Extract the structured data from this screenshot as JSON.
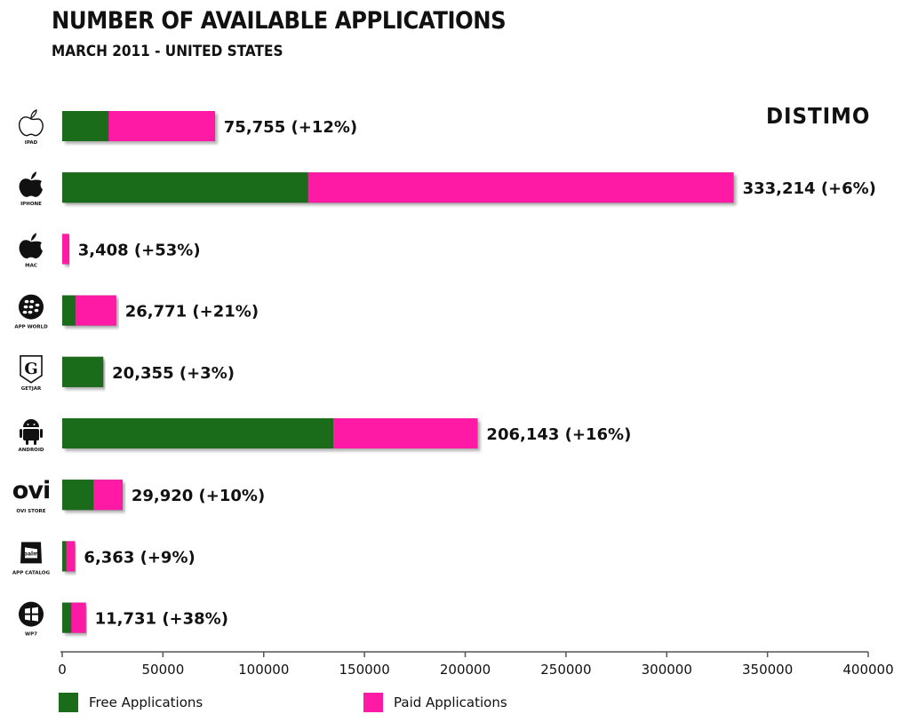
{
  "header": {
    "title": "NUMBER OF AVAILABLE APPLICATIONS",
    "subtitle": "MARCH 2011  - UNITED STATES",
    "brand": "DISTIMO"
  },
  "colors": {
    "free": "#1a6b1a",
    "paid": "#ff1aa6",
    "axis": "#555555"
  },
  "chart_data": {
    "type": "bar",
    "orientation": "horizontal",
    "stacked": true,
    "title": "NUMBER OF AVAILABLE APPLICATIONS",
    "subtitle": "MARCH 2011  - UNITED STATES",
    "xlim": [
      0,
      400000
    ],
    "x_ticks": [
      "0",
      "50000",
      "100000",
      "150000",
      "200000",
      "250000",
      "300000",
      "350000",
      "400000"
    ],
    "legend_position": "bottom-left",
    "grid": false,
    "categories": [
      "IPAD",
      "IPHONE",
      "MAC",
      "APP WORLD",
      "GETJAR",
      "ANDROID",
      "OVI STORE",
      "APP CATALOG",
      "WP7"
    ],
    "icons": [
      "apple-outline-icon",
      "apple-icon",
      "apple-icon",
      "blackberry-icon",
      "getjar-icon",
      "android-icon",
      "ovi-icon",
      "palm-icon",
      "windows-icon"
    ],
    "series": [
      {
        "name": "Free Applications",
        "values": [
          23000,
          122000,
          0,
          6500,
          20355,
          134500,
          15500,
          2000,
          4500
        ]
      },
      {
        "name": "Paid Applications",
        "values": [
          52755,
          211214,
          3408,
          20271,
          0,
          71643,
          14420,
          4363,
          7231
        ]
      }
    ],
    "labels": [
      "75,755 (+12%)",
      "333,214 (+6%)",
      "3,408 (+53%)",
      "26,771 (+21%)",
      "20,355 (+3%)",
      "206,143 (+16%)",
      "29,920 (+10%)",
      "6,363 (+9%)",
      "11,731 (+38%)"
    ]
  },
  "legend": {
    "free": "Free Applications",
    "paid": "Paid Applications"
  }
}
